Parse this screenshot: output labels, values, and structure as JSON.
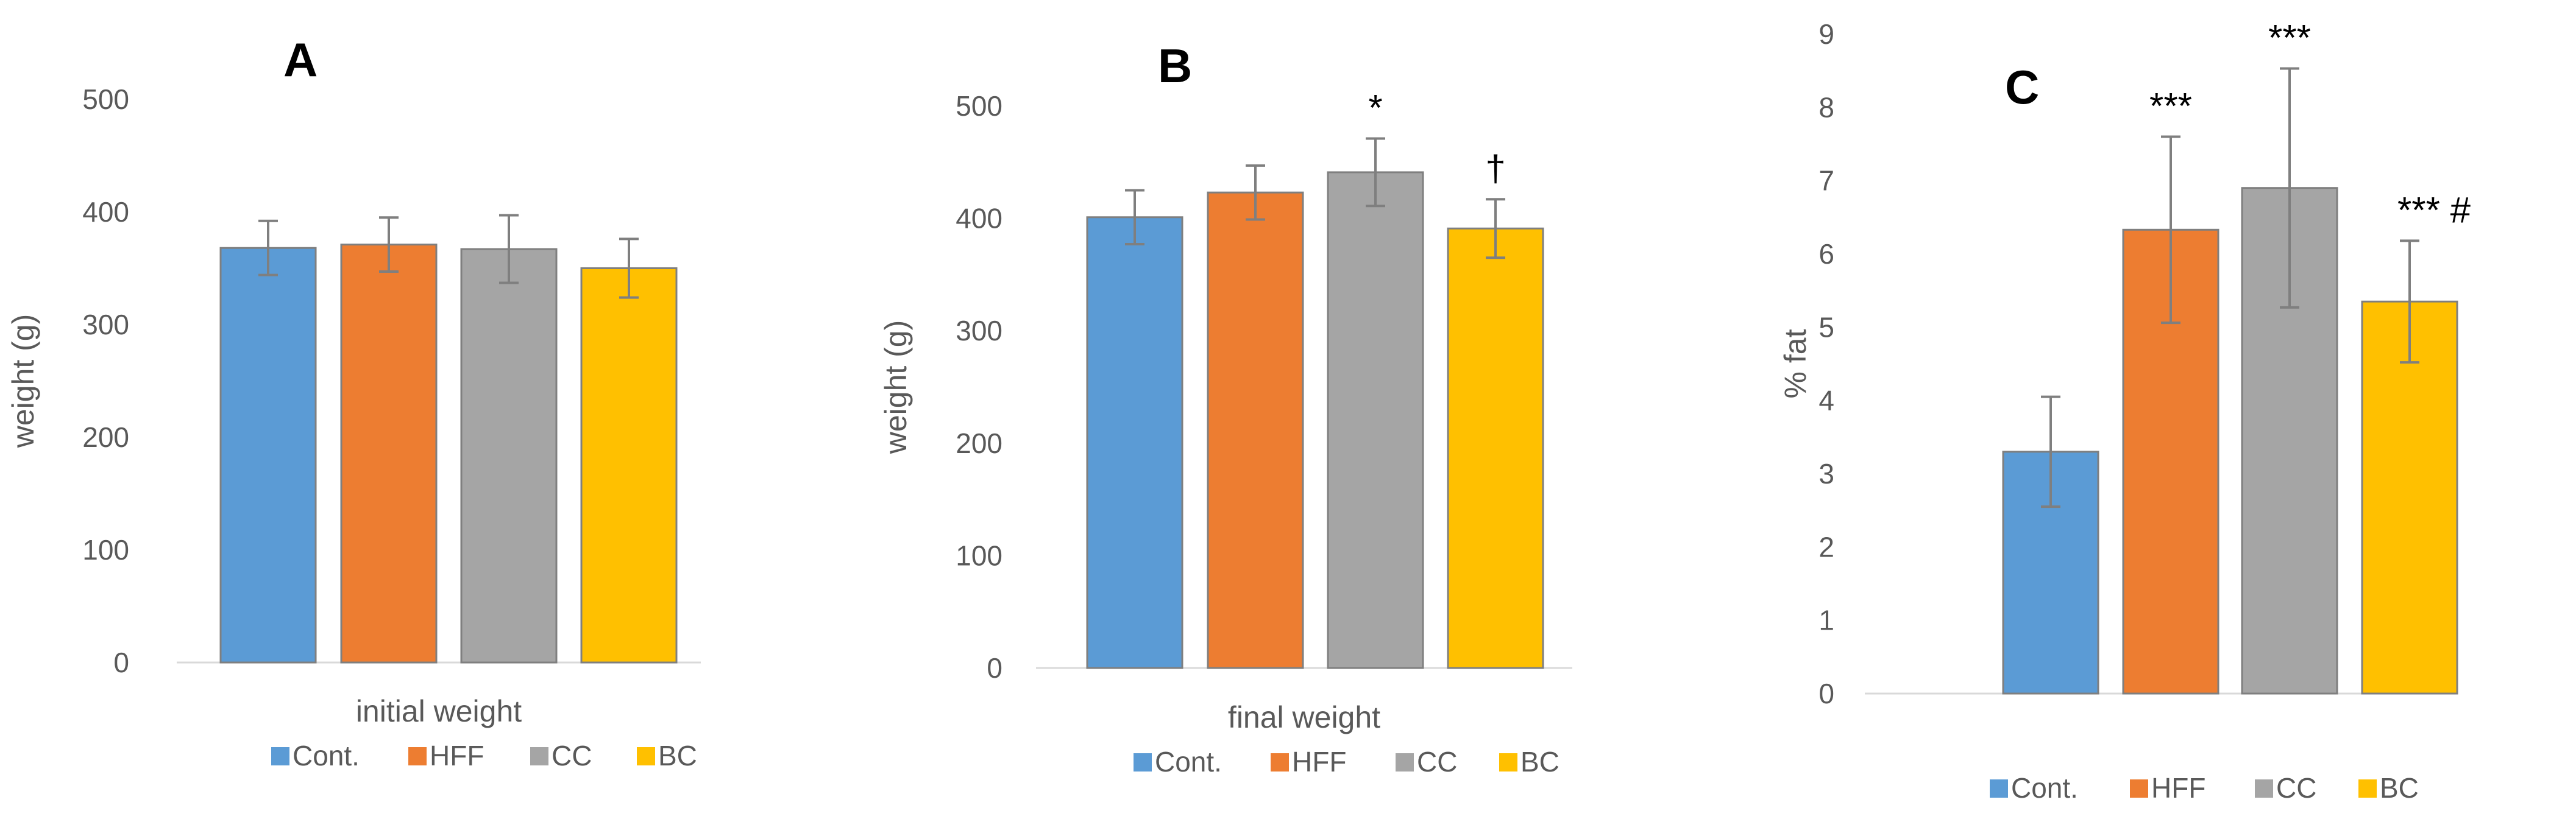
{
  "colors": {
    "Cont.": "#5B9BD5",
    "HFF": "#ED7D31",
    "CC": "#A5A5A5",
    "BC": "#FFC000"
  },
  "chart_data": [
    {
      "panel": "A",
      "type": "bar",
      "xlabel": "initial weight",
      "ylabel": "weight (g)",
      "ylim": [
        0,
        500
      ],
      "yticks": [
        0,
        100,
        200,
        300,
        400,
        500
      ],
      "categories": [
        "Cont.",
        "HFF",
        "CC",
        "BC"
      ],
      "values": [
        368,
        371,
        367,
        350
      ],
      "errors": [
        24,
        24,
        30,
        26
      ],
      "annotations": [
        "",
        "",
        "",
        ""
      ],
      "legend": [
        "Cont.",
        "HFF",
        "CC",
        "BC"
      ]
    },
    {
      "panel": "B",
      "type": "bar",
      "xlabel": "final weight",
      "ylabel": "weight (g)",
      "ylim": [
        0,
        500
      ],
      "yticks": [
        0,
        100,
        200,
        300,
        400,
        500
      ],
      "categories": [
        "Cont.",
        "HFF",
        "CC",
        "BC"
      ],
      "values": [
        401,
        423,
        441,
        391
      ],
      "errors": [
        24,
        24,
        30,
        26
      ],
      "annotations": [
        "",
        "",
        "*",
        "†"
      ],
      "legend": [
        "Cont.",
        "HFF",
        "CC",
        "BC"
      ]
    },
    {
      "panel": "C",
      "type": "bar",
      "xlabel": "",
      "ylabel": "% fat",
      "ylim": [
        0,
        9
      ],
      "yticks": [
        0,
        1,
        2,
        3,
        4,
        5,
        6,
        7,
        8,
        9
      ],
      "categories": [
        "Cont.",
        "HFF",
        "CC",
        "BC"
      ],
      "values": [
        3.3,
        6.33,
        6.9,
        5.35
      ],
      "errors": [
        0.75,
        1.27,
        1.63,
        0.83
      ],
      "annotations": [
        "",
        "***",
        "***",
        "*** #"
      ],
      "legend": [
        "Cont.",
        "HFF",
        "CC",
        "BC"
      ]
    }
  ]
}
